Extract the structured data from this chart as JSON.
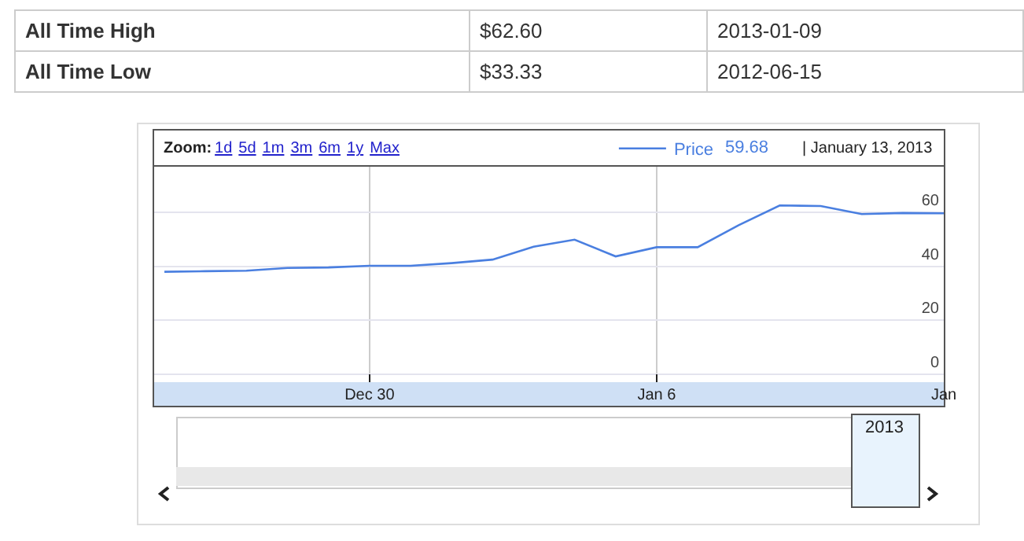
{
  "chart_data": {
    "type": "line",
    "x": [
      "2012-12-25",
      "2012-12-26",
      "2012-12-27",
      "2012-12-28",
      "2012-12-29",
      "2012-12-30",
      "2012-12-31",
      "2013-01-01",
      "2013-01-02",
      "2013-01-03",
      "2013-01-04",
      "2013-01-05",
      "2013-01-06",
      "2013-01-07",
      "2013-01-08",
      "2013-01-09",
      "2013-01-10",
      "2013-01-11",
      "2013-01-12",
      "2013-01-13"
    ],
    "series": [
      {
        "name": "Price",
        "color": "#4a7fe0",
        "values": [
          38.0,
          38.2,
          38.4,
          39.4,
          39.6,
          40.2,
          40.2,
          41.2,
          42.5,
          47.3,
          49.9,
          43.7,
          47.1,
          47.1,
          55.3,
          62.6,
          62.4,
          59.4,
          59.8,
          59.68
        ]
      }
    ],
    "xlim": [
      "2012-12-24T18:00",
      "2013-01-13"
    ],
    "xticks": [
      {
        "value": "2012-12-30",
        "label": "Dec 30"
      },
      {
        "value": "2013-01-06",
        "label": "Jan 6"
      },
      {
        "value": "2013-01-13",
        "label": "Jan"
      }
    ],
    "ylim": [
      -3,
      77
    ],
    "yticks": [
      0,
      20,
      40,
      60
    ],
    "grid": true,
    "legend": "top right",
    "marker": "none",
    "line_style": "solid",
    "annotations": [
      "All Time High",
      "$62.60",
      "2013-01-09",
      "All Time Low",
      "$33.33",
      "2012-06-15",
      "Zoom:",
      "1d",
      "5d",
      "1m",
      "3m",
      "6m",
      "1y",
      "Max",
      "59.68",
      "| January 13, 2013",
      "2013"
    ]
  }
}
